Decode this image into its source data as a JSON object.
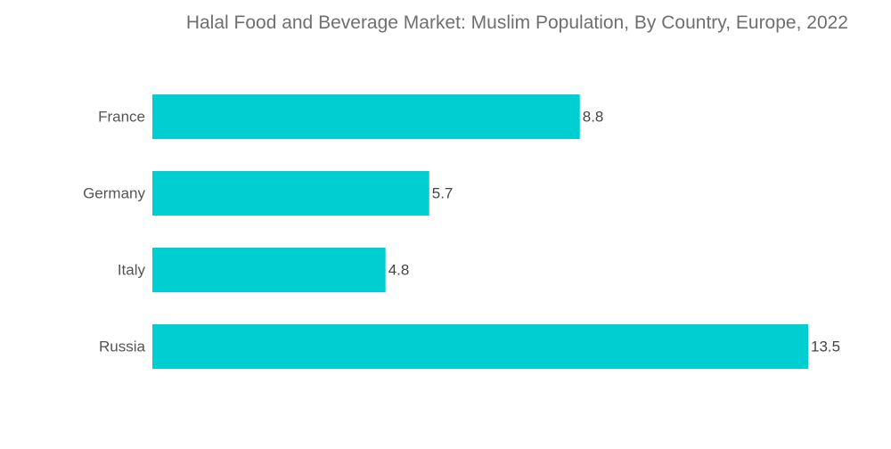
{
  "chart_data": {
    "type": "bar",
    "orientation": "horizontal",
    "title": "Halal Food and Beverage Market: Muslim Population, By Country, Europe, 2022",
    "categories": [
      "France",
      "Germany",
      "Italy",
      "Russia"
    ],
    "values": [
      8.8,
      5.7,
      4.8,
      13.5
    ],
    "value_labels": [
      "8.8",
      "5.7",
      "4.8",
      "13.5"
    ],
    "xlim": [
      0,
      13.5
    ],
    "grid": false,
    "legend": "none",
    "bar_color": "#00CED1"
  }
}
